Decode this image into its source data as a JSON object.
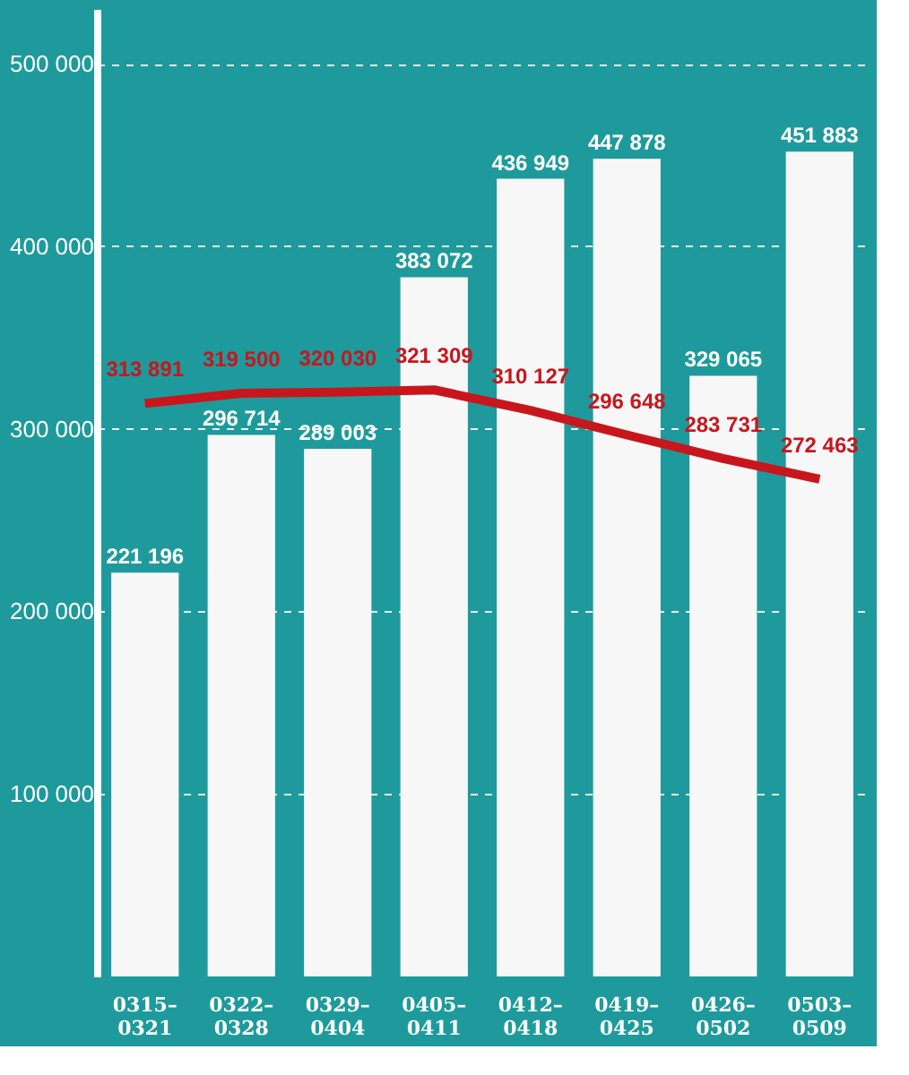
{
  "chart_data": {
    "type": "bar",
    "categories": [
      "0315–\n0321",
      "0322–\n0328",
      "0329–\n0404",
      "0405–\n0411",
      "0412–\n0418",
      "0419–\n0425",
      "0426–\n0502",
      "0503–\n0509"
    ],
    "series": [
      {
        "color": "#f7f7f7",
        "values": [
          221196,
          296714,
          289003,
          383072,
          436949,
          447878,
          329065,
          451883
        ],
        "value_labels": [
          "221 196",
          "296 714",
          "289 003",
          "383 072",
          "436 949",
          "447 878",
          "329 065",
          "451 883"
        ]
      },
      {
        "type": "line",
        "color": "#c8161d",
        "values": [
          313891,
          319500,
          320030,
          321309,
          310127,
          296648,
          283731,
          272463
        ],
        "value_labels": [
          "313 891",
          "319 500",
          "320 030",
          "321 309",
          "310 127",
          "296 648",
          "283 731",
          "272 463"
        ]
      }
    ],
    "ylim": [
      0,
      530000
    ],
    "yticks": [
      {
        "value": 100000,
        "label": "100 000"
      },
      {
        "value": 200000,
        "label": "200 000"
      },
      {
        "value": 300000,
        "label": "300 000"
      },
      {
        "value": 400000,
        "label": "400 000"
      },
      {
        "value": 500000,
        "label": "500 000"
      }
    ],
    "grid": "y",
    "tick_labels": "xy"
  }
}
